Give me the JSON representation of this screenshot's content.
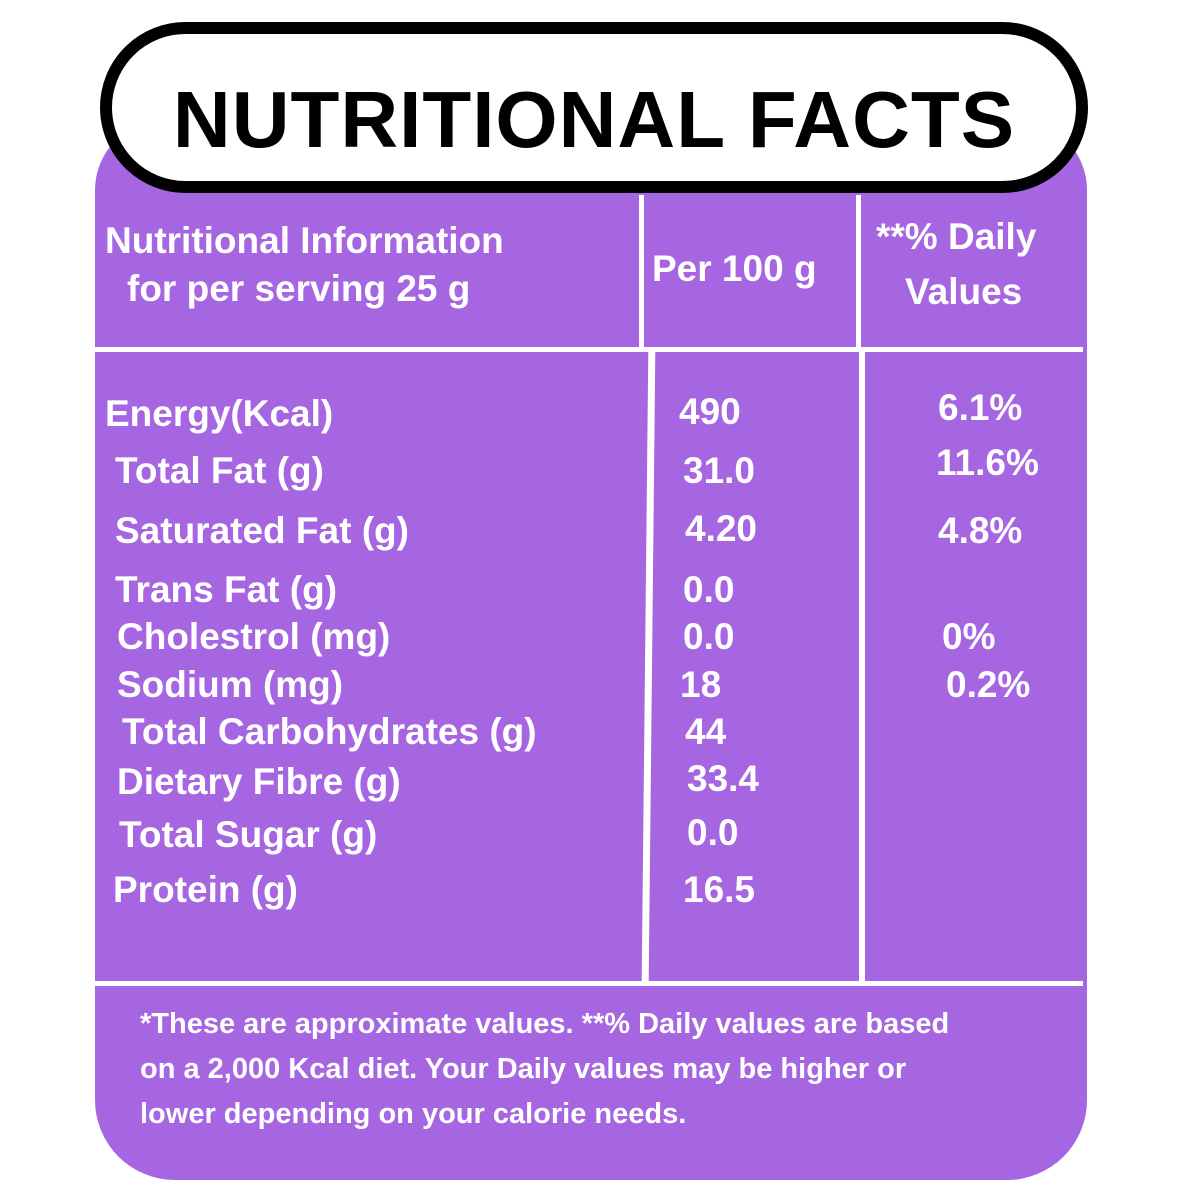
{
  "title": "NUTRITIONAL FACTS",
  "header": {
    "col1_line1": "Nutritional Information",
    "col1_line2": "for per serving 25 g",
    "col2": "Per 100 g",
    "col3_line1": "**% Daily",
    "col3_line2": "Values"
  },
  "rows": [
    {
      "name": "Energy(Kcal)",
      "per100": "490",
      "dv": "6.1%"
    },
    {
      "name": "Total Fat (g)",
      "per100": "31.0",
      "dv": "11.6%"
    },
    {
      "name": "Saturated Fat (g)",
      "per100": "4.20",
      "dv": "4.8%"
    },
    {
      "name": "Trans Fat (g)",
      "per100": "0.0",
      "dv": ""
    },
    {
      "name": "Cholestrol (mg)",
      "per100": "0.0",
      "dv": "0%"
    },
    {
      "name": "Sodium (mg)",
      "per100": "18",
      "dv": "0.2%"
    },
    {
      "name": "Total Carbohydrates (g)",
      "per100": "44",
      "dv": ""
    },
    {
      "name": "Dietary Fibre (g)",
      "per100": "33.4",
      "dv": ""
    },
    {
      "name": "Total Sugar (g)",
      "per100": "0.0",
      "dv": ""
    },
    {
      "name": "Protein (g)",
      "per100": "16.5",
      "dv": ""
    }
  ],
  "footnote": {
    "line1": "*These are approximate values.  **% Daily values are based",
    "line2": "on a 2,000 Kcal diet. Your Daily values may be higher or",
    "line3": "lower depending on your calorie needs."
  },
  "colors": {
    "panel": "#a666e1",
    "text": "#ffffff",
    "title": "#000000"
  }
}
